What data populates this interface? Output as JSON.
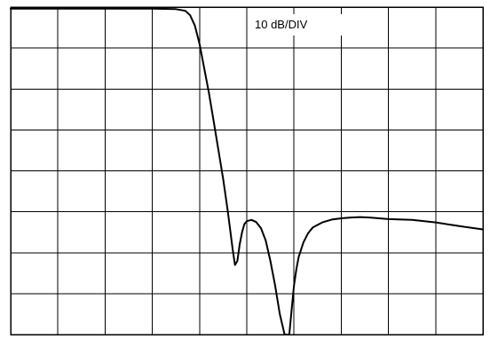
{
  "chart_data": {
    "type": "line",
    "title": "",
    "xlabel": "",
    "ylabel": "",
    "scale_label": "10 dB/DIV",
    "grid": true,
    "divisions": {
      "x": 10,
      "y": 8
    },
    "xlim": [
      0,
      10
    ],
    "ylim": [
      -80,
      0
    ],
    "y_units": "dB",
    "colors": {
      "trace": "#000000",
      "grid": "#000000",
      "background": "#ffffff"
    },
    "series": [
      {
        "x": [
          0,
          0.5,
          1,
          1.5,
          2,
          2.5,
          3,
          3.5,
          3.7,
          3.8,
          3.9,
          4.0,
          4.1,
          4.2,
          4.3,
          4.4,
          4.5,
          4.6,
          4.7,
          4.75,
          4.8,
          4.85,
          4.9,
          4.95,
          5.0,
          5.1,
          5.2,
          5.3,
          5.4,
          5.5,
          5.6,
          5.7,
          5.8,
          5.85,
          5.9,
          5.95,
          6.0,
          6.05,
          6.1,
          6.2,
          6.3,
          6.4,
          6.6,
          6.8,
          7.0,
          7.2,
          7.4,
          7.6,
          7.8,
          8.0,
          8.5,
          9.0,
          9.5,
          10.0
        ],
        "y": [
          -0.4,
          -0.4,
          -0.4,
          -0.4,
          -0.4,
          -0.4,
          -0.4,
          -0.5,
          -0.9,
          -2.0,
          -4.5,
          -9,
          -15,
          -21,
          -28,
          -35,
          -42,
          -50,
          -59,
          -63,
          -62,
          -58,
          -55,
          -53,
          -52.3,
          -52.0,
          -52.5,
          -54,
          -57,
          -62,
          -68,
          -75,
          -81,
          -81.5,
          -80,
          -74,
          -68,
          -64,
          -61,
          -57.5,
          -55.2,
          -53.8,
          -52.6,
          -51.9,
          -51.6,
          -51.4,
          -51.3,
          -51.4,
          -51.6,
          -51.8,
          -52.0,
          -52.6,
          -53.5,
          -54.3
        ]
      }
    ]
  }
}
